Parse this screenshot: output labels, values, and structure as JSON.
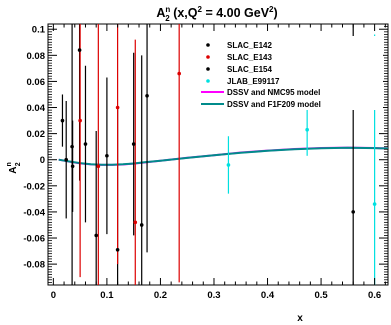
{
  "chart_data": {
    "type": "scatter",
    "title": {
      "base": "A",
      "sup": "n",
      "sub": "2",
      "rest": " (x,Q",
      "rest_sup": "2",
      "tail": " = 4.00 GeV",
      "tail_sup": "2",
      "close": ")"
    },
    "xlabel": "x",
    "ylabel": {
      "base": "A",
      "sup": "n",
      "sub": "2"
    },
    "xlim": [
      -0.01,
      0.625
    ],
    "ylim": [
      -0.096,
      0.104
    ],
    "x_ticks": [
      0,
      0.1,
      0.2,
      0.3,
      0.4,
      0.5,
      0.6
    ],
    "x_tick_labels": [
      "0",
      "0.1",
      "0.2",
      "0.3",
      "0.4",
      "0.5",
      "0.6"
    ],
    "y_ticks": [
      -0.08,
      -0.06,
      -0.04,
      -0.02,
      0,
      0.02,
      0.04,
      0.06,
      0.08,
      0.1
    ],
    "y_tick_labels": [
      "-0.08",
      "-0.06",
      "-0.04",
      "-0.02",
      "0",
      "0.02",
      "0.04",
      "0.06",
      "0.08",
      "0.1"
    ],
    "grid": false,
    "legend_position": "top-right",
    "series": [
      {
        "name": "SLAC_E142",
        "color": "#000000",
        "marker": "point",
        "points": [
          {
            "x": 0.035,
            "y": 0.01,
            "err": 0.12
          },
          {
            "x": 0.049,
            "y": 0.084,
            "err": 0.1
          },
          {
            "x": 0.08,
            "y": -0.058,
            "err": 0.08
          },
          {
            "x": 0.12,
            "y": -0.069,
            "err": 0.11
          },
          {
            "x": 0.165,
            "y": -0.05,
            "err": 0.13
          },
          {
            "x": 0.56,
            "y": -0.04,
            "err": 0.16
          }
        ]
      },
      {
        "name": "SLAC_E143",
        "color": "#dd0000",
        "marker": "point",
        "points": [
          {
            "x": 0.05,
            "y": 0.03,
            "err": 0.12
          },
          {
            "x": 0.084,
            "y": -0.005,
            "err": 0.13
          },
          {
            "x": 0.12,
            "y": 0.04,
            "err": 0.12
          },
          {
            "x": 0.153,
            "y": -0.048,
            "err": 0.14
          },
          {
            "x": 0.235,
            "y": 0.066,
            "err": 0.16
          }
        ]
      },
      {
        "name": "SLAC_E154",
        "color": "#000000",
        "marker": "point",
        "points": [
          {
            "x": 0.017,
            "y": 0.03,
            "err": 0.02
          },
          {
            "x": 0.024,
            "y": 0.0,
            "err": 0.045
          },
          {
            "x": 0.036,
            "y": -0.005,
            "err": 0.035
          },
          {
            "x": 0.06,
            "y": 0.012,
            "err": 0.06
          },
          {
            "x": 0.1,
            "y": 0.003,
            "err": 0.06
          },
          {
            "x": 0.15,
            "y": 0.012,
            "err": 0.07
          },
          {
            "x": 0.175,
            "y": 0.049,
            "err": 0.12
          }
        ]
      },
      {
        "name": "JLAB_E99117",
        "color": "#00e0e0",
        "marker": "point",
        "points": [
          {
            "x": 0.327,
            "y": -0.004,
            "err": 0.022
          },
          {
            "x": 0.474,
            "y": 0.023,
            "err": 0.02
          },
          {
            "x": 0.6,
            "y": -0.034,
            "err": 0.13
          }
        ]
      }
    ],
    "curves": [
      {
        "name": "DSSV and NMC95 model",
        "color": "#ff00ff",
        "x": [
          0.01,
          0.03,
          0.05,
          0.07,
          0.09,
          0.11,
          0.13,
          0.15,
          0.17,
          0.2,
          0.25,
          0.3,
          0.35,
          0.4,
          0.45,
          0.5,
          0.55,
          0.6,
          0.625
        ],
        "y": [
          0.0,
          -0.0015,
          -0.0028,
          -0.0036,
          -0.004,
          -0.004,
          -0.0037,
          -0.003,
          -0.0021,
          -0.0008,
          0.0015,
          0.0035,
          0.0055,
          0.007,
          0.0082,
          0.009,
          0.0093,
          0.009,
          0.0087
        ]
      },
      {
        "name": "DSSV and F1F209 model",
        "color": "#008b8b",
        "x": [
          0.01,
          0.03,
          0.05,
          0.07,
          0.09,
          0.11,
          0.13,
          0.15,
          0.17,
          0.2,
          0.25,
          0.3,
          0.35,
          0.4,
          0.45,
          0.5,
          0.55,
          0.6,
          0.625
        ],
        "y": [
          0.0,
          -0.0014,
          -0.0026,
          -0.0034,
          -0.0038,
          -0.0038,
          -0.0035,
          -0.0029,
          -0.002,
          -0.0008,
          0.0014,
          0.0034,
          0.0053,
          0.0068,
          0.008,
          0.0088,
          0.0091,
          0.0089,
          0.0086
        ]
      }
    ]
  }
}
